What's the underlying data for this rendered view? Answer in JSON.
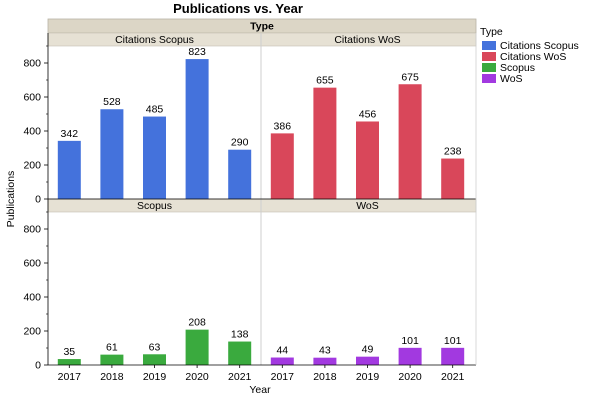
{
  "chart_data": {
    "type": "bar",
    "title": "Publications vs. Year",
    "group_header": "Type",
    "xlabel": "Year",
    "ylabel": "Publications",
    "categories": [
      "2017",
      "2018",
      "2019",
      "2020",
      "2021"
    ],
    "ylim": [
      0,
      900
    ],
    "yticks": [
      "0",
      "200",
      "400",
      "600",
      "800"
    ],
    "grid": false,
    "legend": {
      "title": "Type",
      "placement": "right",
      "items": [
        {
          "name": "Citations Scopus",
          "color": "#4472dc"
        },
        {
          "name": "Citations WoS",
          "color": "#d9475a"
        },
        {
          "name": "Scopus",
          "color": "#3aaa3e"
        },
        {
          "name": "WoS",
          "color": "#a239e0"
        }
      ]
    },
    "panels": [
      {
        "name": "Citations Scopus",
        "color": "#4472dc",
        "values": [
          342,
          528,
          485,
          823,
          290
        ],
        "labels": [
          "342",
          "528",
          "485",
          "823",
          "290"
        ]
      },
      {
        "name": "Citations WoS",
        "color": "#d9475a",
        "values": [
          386,
          655,
          456,
          675,
          238
        ],
        "labels": [
          "386",
          "655",
          "456",
          "675",
          "238"
        ]
      },
      {
        "name": "Scopus",
        "color": "#3aaa3e",
        "values": [
          35,
          61,
          63,
          208,
          138
        ],
        "labels": [
          "35",
          "61",
          "63",
          "208",
          "138"
        ]
      },
      {
        "name": "WoS",
        "color": "#a239e0",
        "values": [
          44,
          43,
          49,
          101,
          101
        ],
        "labels": [
          "44",
          "43",
          "49",
          "101",
          "101"
        ]
      }
    ]
  }
}
